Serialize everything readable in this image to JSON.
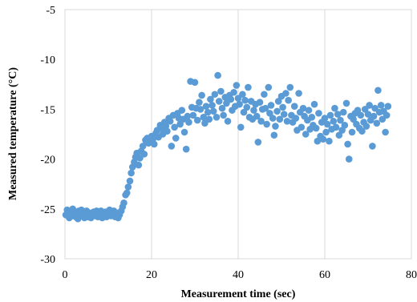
{
  "chart_data": {
    "type": "scatter",
    "title": "",
    "xlabel": "Measurement time (sec)",
    "ylabel": "Measured temperature (°C)",
    "xlim": [
      0,
      80
    ],
    "ylim": [
      -30,
      -5
    ],
    "xticks": [
      0,
      20,
      40,
      60,
      80
    ],
    "yticks": [
      -5,
      -10,
      -15,
      -20,
      -25,
      -30
    ],
    "grid": "vertical",
    "marker_color": "#5B9BD5",
    "series": [
      {
        "points": [
          [
            0.2,
            -25.6
          ],
          [
            0.5,
            -25.1
          ],
          [
            0.8,
            -25.4
          ],
          [
            1.0,
            -25.9
          ],
          [
            1.2,
            -25.2
          ],
          [
            1.5,
            -25.5
          ],
          [
            1.8,
            -25.0
          ],
          [
            2.0,
            -25.7
          ],
          [
            2.2,
            -25.3
          ],
          [
            2.5,
            -25.8
          ],
          [
            2.8,
            -25.4
          ],
          [
            3.0,
            -26.0
          ],
          [
            3.2,
            -25.2
          ],
          [
            3.5,
            -25.6
          ],
          [
            3.8,
            -25.1
          ],
          [
            4.0,
            -25.7
          ],
          [
            4.2,
            -25.4
          ],
          [
            4.5,
            -25.9
          ],
          [
            4.8,
            -25.5
          ],
          [
            5.0,
            -25.2
          ],
          [
            5.3,
            -25.8
          ],
          [
            5.6,
            -25.4
          ],
          [
            6.0,
            -25.9
          ],
          [
            6.3,
            -25.6
          ],
          [
            6.6,
            -25.3
          ],
          [
            7.0,
            -25.7
          ],
          [
            7.3,
            -25.2
          ],
          [
            7.6,
            -25.8
          ],
          [
            8.0,
            -25.5
          ],
          [
            8.3,
            -25.2
          ],
          [
            8.6,
            -25.9
          ],
          [
            9.0,
            -25.6
          ],
          [
            9.3,
            -25.3
          ],
          [
            9.6,
            -25.8
          ],
          [
            10.0,
            -25.4
          ],
          [
            10.3,
            -25.1
          ],
          [
            10.6,
            -25.7
          ],
          [
            11.0,
            -25.5
          ],
          [
            11.3,
            -25.2
          ],
          [
            11.6,
            -25.8
          ],
          [
            12.0,
            -25.4
          ],
          [
            12.3,
            -25.9
          ],
          [
            12.6,
            -25.6
          ],
          [
            13.0,
            -25.2
          ],
          [
            13.3,
            -24.8
          ],
          [
            13.6,
            -24.4
          ],
          [
            14.0,
            -23.6
          ],
          [
            14.3,
            -23.4
          ],
          [
            14.6,
            -22.8
          ],
          [
            15.0,
            -22.2
          ],
          [
            15.3,
            -21.4
          ],
          [
            15.6,
            -20.8
          ],
          [
            16.0,
            -20.3
          ],
          [
            16.3,
            -19.8
          ],
          [
            16.6,
            -19.4
          ],
          [
            17.0,
            -20.6
          ],
          [
            17.3,
            -19.9
          ],
          [
            17.6,
            -19.2
          ],
          [
            18.0,
            -18.7
          ],
          [
            18.3,
            -19.5
          ],
          [
            18.6,
            -18.1
          ],
          [
            19.0,
            -17.9
          ],
          [
            19.3,
            -18.4
          ],
          [
            19.6,
            -18.2
          ],
          [
            20.0,
            -17.7
          ],
          [
            20.3,
            -18.0
          ],
          [
            20.6,
            -18.5
          ],
          [
            21.0,
            -17.4
          ],
          [
            21.3,
            -17.1
          ],
          [
            21.6,
            -17.8
          ],
          [
            22.0,
            -16.6
          ],
          [
            22.3,
            -16.9
          ],
          [
            22.6,
            -17.5
          ],
          [
            23.0,
            -16.3
          ],
          [
            23.3,
            -16.7
          ],
          [
            23.6,
            -17.2
          ],
          [
            24.0,
            -15.9
          ],
          [
            24.3,
            -16.2
          ],
          [
            24.6,
            -18.7
          ],
          [
            25.0,
            -15.6
          ],
          [
            25.3,
            -16.8
          ],
          [
            25.6,
            -17.9
          ],
          [
            26.0,
            -15.4
          ],
          [
            26.3,
            -15.9
          ],
          [
            26.6,
            -16.5
          ],
          [
            27.0,
            -15.1
          ],
          [
            27.3,
            -16.0
          ],
          [
            27.6,
            -17.3
          ],
          [
            28.0,
            -19.0
          ],
          [
            28.3,
            -15.7
          ],
          [
            28.6,
            -16.3
          ],
          [
            29.0,
            -12.2
          ],
          [
            29.3,
            -14.8
          ],
          [
            29.6,
            -15.6
          ],
          [
            30.0,
            -12.3
          ],
          [
            30.3,
            -14.9
          ],
          [
            30.6,
            -16.1
          ],
          [
            31.0,
            -14.3
          ],
          [
            31.3,
            -15.0
          ],
          [
            31.6,
            -13.6
          ],
          [
            32.0,
            -15.8
          ],
          [
            32.3,
            -16.4
          ],
          [
            32.6,
            -14.7
          ],
          [
            33.0,
            -15.3
          ],
          [
            33.3,
            -16.0
          ],
          [
            33.6,
            -14.0
          ],
          [
            34.0,
            -14.6
          ],
          [
            34.3,
            -15.2
          ],
          [
            34.6,
            -13.5
          ],
          [
            35.0,
            -15.8
          ],
          [
            35.3,
            -11.6
          ],
          [
            35.6,
            -14.2
          ],
          [
            36.0,
            -13.2
          ],
          [
            36.3,
            -14.9
          ],
          [
            36.6,
            -15.6
          ],
          [
            37.0,
            -13.8
          ],
          [
            37.3,
            -14.4
          ],
          [
            37.6,
            -16.2
          ],
          [
            38.0,
            -13.6
          ],
          [
            38.3,
            -14.0
          ],
          [
            38.6,
            -15.1
          ],
          [
            39.0,
            -13.3
          ],
          [
            39.3,
            -14.7
          ],
          [
            39.6,
            -12.6
          ],
          [
            40.0,
            -13.9
          ],
          [
            40.3,
            -14.5
          ],
          [
            40.6,
            -16.8
          ],
          [
            41.0,
            -13.5
          ],
          [
            41.3,
            -15.3
          ],
          [
            41.6,
            -14.1
          ],
          [
            42.0,
            -14.8
          ],
          [
            42.3,
            -12.8
          ],
          [
            42.6,
            -15.8
          ],
          [
            43.0,
            -14.2
          ],
          [
            43.3,
            -16.0
          ],
          [
            43.6,
            -15.1
          ],
          [
            44.0,
            -14.5
          ],
          [
            44.3,
            -15.7
          ],
          [
            44.6,
            -18.3
          ],
          [
            45.0,
            -14.3
          ],
          [
            45.3,
            -16.2
          ],
          [
            45.6,
            -15.0
          ],
          [
            46.0,
            -13.5
          ],
          [
            46.3,
            -14.9
          ],
          [
            46.6,
            -16.5
          ],
          [
            47.0,
            -12.8
          ],
          [
            47.3,
            -15.4
          ],
          [
            47.6,
            -14.6
          ],
          [
            48.0,
            -15.9
          ],
          [
            48.3,
            -17.6
          ],
          [
            48.6,
            -16.7
          ],
          [
            49.0,
            -15.2
          ],
          [
            49.3,
            -14.2
          ],
          [
            49.6,
            -16.0
          ],
          [
            50.0,
            -13.7
          ],
          [
            50.3,
            -14.8
          ],
          [
            50.6,
            -15.5
          ],
          [
            51.0,
            -13.4
          ],
          [
            51.3,
            -16.2
          ],
          [
            51.6,
            -14.1
          ],
          [
            52.0,
            -12.8
          ],
          [
            52.3,
            -15.6
          ],
          [
            52.6,
            -16.3
          ],
          [
            53.0,
            -14.7
          ],
          [
            53.3,
            -15.9
          ],
          [
            53.6,
            -17.1
          ],
          [
            54.0,
            -13.4
          ],
          [
            54.3,
            -15.3
          ],
          [
            54.6,
            -16.8
          ],
          [
            55.0,
            -14.9
          ],
          [
            55.3,
            -15.7
          ],
          [
            55.6,
            -17.5
          ],
          [
            56.0,
            -16.1
          ],
          [
            56.3,
            -15.1
          ],
          [
            56.6,
            -17.0
          ],
          [
            57.0,
            -15.8
          ],
          [
            57.3,
            -16.6
          ],
          [
            57.6,
            -14.5
          ],
          [
            58.0,
            -16.9
          ],
          [
            58.3,
            -18.2
          ],
          [
            58.6,
            -15.4
          ],
          [
            59.0,
            -17.7
          ],
          [
            59.3,
            -16.3
          ],
          [
            59.6,
            -18.0
          ],
          [
            60.0,
            -15.9
          ],
          [
            60.3,
            -17.3
          ],
          [
            60.6,
            -16.5
          ],
          [
            61.0,
            -18.2
          ],
          [
            61.3,
            -15.6
          ],
          [
            61.6,
            -17.0
          ],
          [
            62.0,
            -16.2
          ],
          [
            62.3,
            -14.9
          ],
          [
            62.6,
            -16.8
          ],
          [
            63.0,
            -15.5
          ],
          [
            63.3,
            -17.6
          ],
          [
            63.6,
            -16.1
          ],
          [
            64.0,
            -17.1
          ],
          [
            64.3,
            -15.3
          ],
          [
            64.6,
            -16.6
          ],
          [
            65.0,
            -14.4
          ],
          [
            65.3,
            -18.5
          ],
          [
            65.6,
            -20.0
          ],
          [
            66.0,
            -15.7
          ],
          [
            66.3,
            -17.3
          ],
          [
            66.6,
            -16.0
          ],
          [
            67.0,
            -15.4
          ],
          [
            67.3,
            -16.5
          ],
          [
            67.6,
            -15.1
          ],
          [
            68.0,
            -16.9
          ],
          [
            68.3,
            -15.6
          ],
          [
            68.6,
            -17.2
          ],
          [
            69.0,
            -16.3
          ],
          [
            69.3,
            -15.0
          ],
          [
            69.6,
            -16.7
          ],
          [
            70.0,
            -15.5
          ],
          [
            70.3,
            -14.6
          ],
          [
            70.6,
            -16.1
          ],
          [
            71.0,
            -18.7
          ],
          [
            71.3,
            -15.7
          ],
          [
            71.6,
            -14.9
          ],
          [
            72.0,
            -16.4
          ],
          [
            72.3,
            -13.1
          ],
          [
            72.6,
            -15.3
          ],
          [
            73.0,
            -14.6
          ],
          [
            73.3,
            -16.0
          ],
          [
            73.6,
            -15.2
          ],
          [
            74.0,
            -17.3
          ],
          [
            74.3,
            -15.6
          ],
          [
            74.6,
            -14.7
          ]
        ]
      }
    ]
  }
}
